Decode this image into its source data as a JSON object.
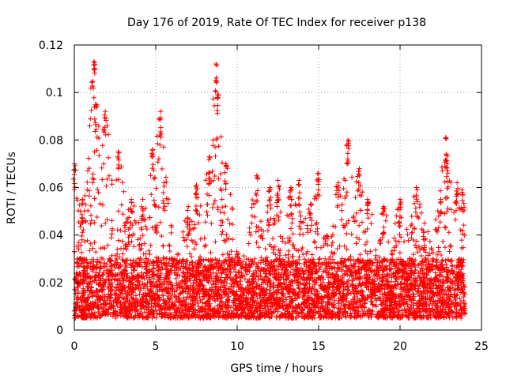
{
  "chart_data": {
    "type": "scatter",
    "title": "Day 176 of 2019, Rate Of TEC Index for receiver p138",
    "xlabel": "GPS time / hours",
    "ylabel": "ROTI / TECUs",
    "xlim": [
      0,
      25
    ],
    "ylim": [
      0,
      0.12
    ],
    "xticks": [
      0,
      5,
      10,
      15,
      20,
      25
    ],
    "xtick_labels": [
      "0",
      "5",
      "10",
      "15",
      "20",
      "25"
    ],
    "yticks": [
      0,
      0.02,
      0.04,
      0.06,
      0.08,
      0.1,
      0.12
    ],
    "ytick_labels": [
      "0",
      "0.02",
      "0.04",
      "0.06",
      "0.08",
      "0.1",
      "0.12"
    ],
    "grid": true,
    "marker": "plus",
    "series_color": "#ff0000",
    "data_x_range": [
      0,
      24
    ],
    "baseline_range": [
      0.005,
      0.03
    ],
    "notable_peaks": [
      {
        "x": 0.0,
        "y": 0.07
      },
      {
        "x": 0.5,
        "y": 0.055
      },
      {
        "x": 1.2,
        "y": 0.113
      },
      {
        "x": 1.3,
        "y": 0.095
      },
      {
        "x": 1.9,
        "y": 0.092
      },
      {
        "x": 2.7,
        "y": 0.075
      },
      {
        "x": 3.5,
        "y": 0.055
      },
      {
        "x": 4.2,
        "y": 0.055
      },
      {
        "x": 4.8,
        "y": 0.076
      },
      {
        "x": 5.3,
        "y": 0.092
      },
      {
        "x": 5.5,
        "y": 0.062
      },
      {
        "x": 7.0,
        "y": 0.052
      },
      {
        "x": 7.5,
        "y": 0.061
      },
      {
        "x": 8.3,
        "y": 0.073
      },
      {
        "x": 8.7,
        "y": 0.112
      },
      {
        "x": 8.8,
        "y": 0.099
      },
      {
        "x": 9.3,
        "y": 0.07
      },
      {
        "x": 11.2,
        "y": 0.065
      },
      {
        "x": 12.0,
        "y": 0.06
      },
      {
        "x": 12.5,
        "y": 0.063
      },
      {
        "x": 13.3,
        "y": 0.06
      },
      {
        "x": 13.8,
        "y": 0.063
      },
      {
        "x": 14.5,
        "y": 0.053
      },
      {
        "x": 15.0,
        "y": 0.066
      },
      {
        "x": 16.2,
        "y": 0.062
      },
      {
        "x": 16.8,
        "y": 0.08
      },
      {
        "x": 17.5,
        "y": 0.068
      },
      {
        "x": 18.0,
        "y": 0.055
      },
      {
        "x": 19.0,
        "y": 0.052
      },
      {
        "x": 20.0,
        "y": 0.055
      },
      {
        "x": 21.0,
        "y": 0.06
      },
      {
        "x": 21.5,
        "y": 0.045
      },
      {
        "x": 22.5,
        "y": 0.055
      },
      {
        "x": 22.8,
        "y": 0.081
      },
      {
        "x": 22.9,
        "y": 0.07
      },
      {
        "x": 23.5,
        "y": 0.062
      },
      {
        "x": 23.8,
        "y": 0.059
      }
    ]
  },
  "colors": {
    "points": "#ff0000",
    "grid": "#a0a0a0",
    "axis": "#000000"
  }
}
